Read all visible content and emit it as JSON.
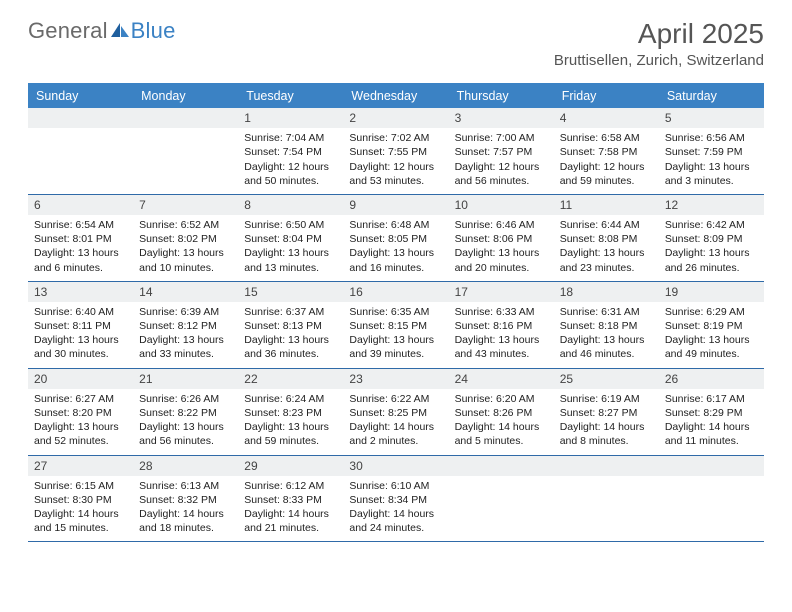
{
  "brand": {
    "part1": "General",
    "part2": "Blue"
  },
  "title": "April 2025",
  "location": "Bruttisellen, Zurich, Switzerland",
  "colors": {
    "header_bg": "#3b82c4",
    "week_border": "#2f6aa8",
    "daynum_bg": "#eef0f1",
    "text": "#333333",
    "title_text": "#555555"
  },
  "day_names": [
    "Sunday",
    "Monday",
    "Tuesday",
    "Wednesday",
    "Thursday",
    "Friday",
    "Saturday"
  ],
  "weeks": [
    [
      {
        "n": "",
        "sr": "",
        "ss": "",
        "d1": "",
        "d2": ""
      },
      {
        "n": "",
        "sr": "",
        "ss": "",
        "d1": "",
        "d2": ""
      },
      {
        "n": "1",
        "sr": "Sunrise: 7:04 AM",
        "ss": "Sunset: 7:54 PM",
        "d1": "Daylight: 12 hours",
        "d2": "and 50 minutes."
      },
      {
        "n": "2",
        "sr": "Sunrise: 7:02 AM",
        "ss": "Sunset: 7:55 PM",
        "d1": "Daylight: 12 hours",
        "d2": "and 53 minutes."
      },
      {
        "n": "3",
        "sr": "Sunrise: 7:00 AM",
        "ss": "Sunset: 7:57 PM",
        "d1": "Daylight: 12 hours",
        "d2": "and 56 minutes."
      },
      {
        "n": "4",
        "sr": "Sunrise: 6:58 AM",
        "ss": "Sunset: 7:58 PM",
        "d1": "Daylight: 12 hours",
        "d2": "and 59 minutes."
      },
      {
        "n": "5",
        "sr": "Sunrise: 6:56 AM",
        "ss": "Sunset: 7:59 PM",
        "d1": "Daylight: 13 hours",
        "d2": "and 3 minutes."
      }
    ],
    [
      {
        "n": "6",
        "sr": "Sunrise: 6:54 AM",
        "ss": "Sunset: 8:01 PM",
        "d1": "Daylight: 13 hours",
        "d2": "and 6 minutes."
      },
      {
        "n": "7",
        "sr": "Sunrise: 6:52 AM",
        "ss": "Sunset: 8:02 PM",
        "d1": "Daylight: 13 hours",
        "d2": "and 10 minutes."
      },
      {
        "n": "8",
        "sr": "Sunrise: 6:50 AM",
        "ss": "Sunset: 8:04 PM",
        "d1": "Daylight: 13 hours",
        "d2": "and 13 minutes."
      },
      {
        "n": "9",
        "sr": "Sunrise: 6:48 AM",
        "ss": "Sunset: 8:05 PM",
        "d1": "Daylight: 13 hours",
        "d2": "and 16 minutes."
      },
      {
        "n": "10",
        "sr": "Sunrise: 6:46 AM",
        "ss": "Sunset: 8:06 PM",
        "d1": "Daylight: 13 hours",
        "d2": "and 20 minutes."
      },
      {
        "n": "11",
        "sr": "Sunrise: 6:44 AM",
        "ss": "Sunset: 8:08 PM",
        "d1": "Daylight: 13 hours",
        "d2": "and 23 minutes."
      },
      {
        "n": "12",
        "sr": "Sunrise: 6:42 AM",
        "ss": "Sunset: 8:09 PM",
        "d1": "Daylight: 13 hours",
        "d2": "and 26 minutes."
      }
    ],
    [
      {
        "n": "13",
        "sr": "Sunrise: 6:40 AM",
        "ss": "Sunset: 8:11 PM",
        "d1": "Daylight: 13 hours",
        "d2": "and 30 minutes."
      },
      {
        "n": "14",
        "sr": "Sunrise: 6:39 AM",
        "ss": "Sunset: 8:12 PM",
        "d1": "Daylight: 13 hours",
        "d2": "and 33 minutes."
      },
      {
        "n": "15",
        "sr": "Sunrise: 6:37 AM",
        "ss": "Sunset: 8:13 PM",
        "d1": "Daylight: 13 hours",
        "d2": "and 36 minutes."
      },
      {
        "n": "16",
        "sr": "Sunrise: 6:35 AM",
        "ss": "Sunset: 8:15 PM",
        "d1": "Daylight: 13 hours",
        "d2": "and 39 minutes."
      },
      {
        "n": "17",
        "sr": "Sunrise: 6:33 AM",
        "ss": "Sunset: 8:16 PM",
        "d1": "Daylight: 13 hours",
        "d2": "and 43 minutes."
      },
      {
        "n": "18",
        "sr": "Sunrise: 6:31 AM",
        "ss": "Sunset: 8:18 PM",
        "d1": "Daylight: 13 hours",
        "d2": "and 46 minutes."
      },
      {
        "n": "19",
        "sr": "Sunrise: 6:29 AM",
        "ss": "Sunset: 8:19 PM",
        "d1": "Daylight: 13 hours",
        "d2": "and 49 minutes."
      }
    ],
    [
      {
        "n": "20",
        "sr": "Sunrise: 6:27 AM",
        "ss": "Sunset: 8:20 PM",
        "d1": "Daylight: 13 hours",
        "d2": "and 52 minutes."
      },
      {
        "n": "21",
        "sr": "Sunrise: 6:26 AM",
        "ss": "Sunset: 8:22 PM",
        "d1": "Daylight: 13 hours",
        "d2": "and 56 minutes."
      },
      {
        "n": "22",
        "sr": "Sunrise: 6:24 AM",
        "ss": "Sunset: 8:23 PM",
        "d1": "Daylight: 13 hours",
        "d2": "and 59 minutes."
      },
      {
        "n": "23",
        "sr": "Sunrise: 6:22 AM",
        "ss": "Sunset: 8:25 PM",
        "d1": "Daylight: 14 hours",
        "d2": "and 2 minutes."
      },
      {
        "n": "24",
        "sr": "Sunrise: 6:20 AM",
        "ss": "Sunset: 8:26 PM",
        "d1": "Daylight: 14 hours",
        "d2": "and 5 minutes."
      },
      {
        "n": "25",
        "sr": "Sunrise: 6:19 AM",
        "ss": "Sunset: 8:27 PM",
        "d1": "Daylight: 14 hours",
        "d2": "and 8 minutes."
      },
      {
        "n": "26",
        "sr": "Sunrise: 6:17 AM",
        "ss": "Sunset: 8:29 PM",
        "d1": "Daylight: 14 hours",
        "d2": "and 11 minutes."
      }
    ],
    [
      {
        "n": "27",
        "sr": "Sunrise: 6:15 AM",
        "ss": "Sunset: 8:30 PM",
        "d1": "Daylight: 14 hours",
        "d2": "and 15 minutes."
      },
      {
        "n": "28",
        "sr": "Sunrise: 6:13 AM",
        "ss": "Sunset: 8:32 PM",
        "d1": "Daylight: 14 hours",
        "d2": "and 18 minutes."
      },
      {
        "n": "29",
        "sr": "Sunrise: 6:12 AM",
        "ss": "Sunset: 8:33 PM",
        "d1": "Daylight: 14 hours",
        "d2": "and 21 minutes."
      },
      {
        "n": "30",
        "sr": "Sunrise: 6:10 AM",
        "ss": "Sunset: 8:34 PM",
        "d1": "Daylight: 14 hours",
        "d2": "and 24 minutes."
      },
      {
        "n": "",
        "sr": "",
        "ss": "",
        "d1": "",
        "d2": ""
      },
      {
        "n": "",
        "sr": "",
        "ss": "",
        "d1": "",
        "d2": ""
      },
      {
        "n": "",
        "sr": "",
        "ss": "",
        "d1": "",
        "d2": ""
      }
    ]
  ]
}
